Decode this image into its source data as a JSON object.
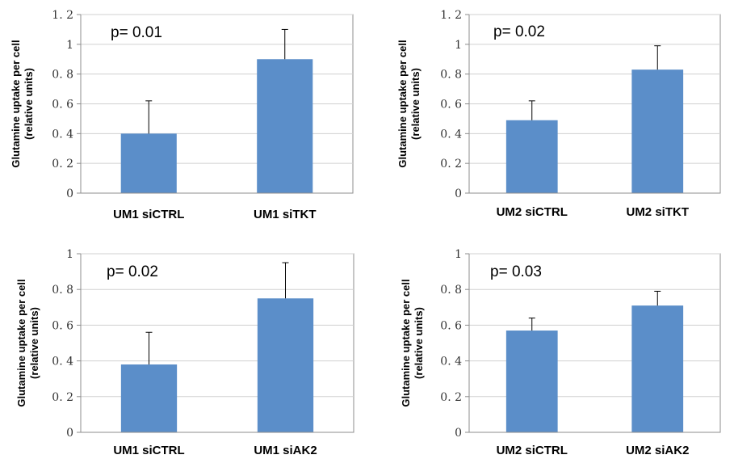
{
  "style": {
    "bar_color": "#5b8ec9",
    "grid_color": "#d0d0d0",
    "axis_color": "#8c8c8c",
    "error_bar_color": "#000000"
  },
  "chart_data": [
    {
      "type": "bar",
      "ylabel_line1": "Glutamine uptake per cell",
      "ylabel_line2": "(relative units)",
      "annotation": "p= 0.01",
      "categories": [
        "UM1 siCTRL",
        "UM1 siTKT"
      ],
      "values": [
        0.4,
        0.9
      ],
      "errors": [
        0.22,
        0.2
      ],
      "ylim": [
        0,
        1.2
      ],
      "yticks": [
        0,
        0.2,
        0.4,
        0.6,
        0.8,
        1,
        1.2
      ],
      "ytick_labels": [
        "0",
        "0. 2",
        "0. 4",
        "0. 6",
        "0. 8",
        "1",
        "1. 2"
      ],
      "grid": true
    },
    {
      "type": "bar",
      "ylabel_line1": "Glutamine uptake per cell",
      "ylabel_line2": "(relative units)",
      "annotation": "p= 0.02",
      "categories": [
        "UM2 siCTRL",
        "UM2 siTKT"
      ],
      "values": [
        0.49,
        0.83
      ],
      "errors": [
        0.13,
        0.16
      ],
      "ylim": [
        0,
        1.2
      ],
      "yticks": [
        0,
        0.2,
        0.4,
        0.6,
        0.8,
        1,
        1.2
      ],
      "ytick_labels": [
        "0",
        "0. 2",
        "0. 4",
        "0. 6",
        "0. 8",
        "1",
        "1. 2"
      ],
      "grid": true
    },
    {
      "type": "bar",
      "ylabel_line1": "Glutamine uptake per cell",
      "ylabel_line2": "(relative units)",
      "annotation": "p= 0.02",
      "categories": [
        "UM1 siCTRL",
        "UM1 siAK2"
      ],
      "values": [
        0.38,
        0.75
      ],
      "errors": [
        0.18,
        0.2
      ],
      "ylim": [
        0,
        1
      ],
      "yticks": [
        0,
        0.2,
        0.4,
        0.6,
        0.8,
        1
      ],
      "ytick_labels": [
        "0",
        "0. 2",
        "0. 4",
        "0. 6",
        "0. 8",
        "1"
      ],
      "grid": true
    },
    {
      "type": "bar",
      "ylabel_line1": "Glutamine uptake per cell",
      "ylabel_line2": "(relative units)",
      "annotation": "p= 0.03",
      "categories": [
        "UM2 siCTRL",
        "UM2 siAK2"
      ],
      "values": [
        0.57,
        0.71
      ],
      "errors": [
        0.07,
        0.08
      ],
      "ylim": [
        0,
        1
      ],
      "yticks": [
        0,
        0.2,
        0.4,
        0.6,
        0.8,
        1
      ],
      "ytick_labels": [
        "0",
        "0. 2",
        "0. 4",
        "0. 6",
        "0. 8",
        "1"
      ],
      "grid": true
    }
  ]
}
